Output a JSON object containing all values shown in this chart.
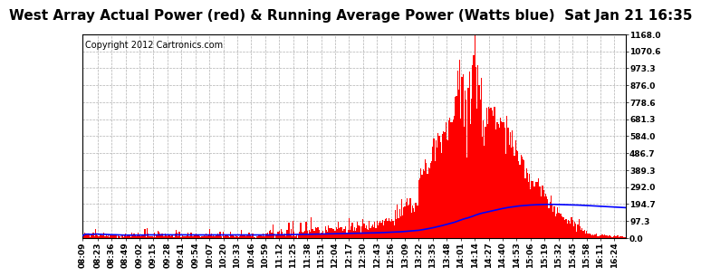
{
  "title": "West Array Actual Power (red) & Running Average Power (Watts blue)  Sat Jan 21 16:35",
  "copyright": "Copyright 2012 Cartronics.com",
  "ylim": [
    0.0,
    1168.0
  ],
  "yticks": [
    0.0,
    97.3,
    194.7,
    292.0,
    389.3,
    486.7,
    584.0,
    681.3,
    778.6,
    876.0,
    973.3,
    1070.6,
    1168.0
  ],
  "x_labels": [
    "08:09",
    "08:23",
    "08:36",
    "08:49",
    "09:02",
    "09:15",
    "09:28",
    "09:41",
    "09:54",
    "10:07",
    "10:20",
    "10:33",
    "10:46",
    "10:59",
    "11:12",
    "11:25",
    "11:38",
    "11:51",
    "12:04",
    "12:17",
    "12:30",
    "12:43",
    "12:56",
    "13:09",
    "13:22",
    "13:35",
    "13:48",
    "14:01",
    "14:14",
    "14:27",
    "14:40",
    "14:53",
    "15:06",
    "15:19",
    "15:32",
    "15:45",
    "15:58",
    "16:11",
    "16:24"
  ],
  "bar_color": "#ff0000",
  "line_color": "#0000ff",
  "background_color": "#ffffff",
  "grid_color": "#b0b0b0",
  "title_fontsize": 11,
  "copyright_fontsize": 7,
  "tick_fontsize": 6.5
}
